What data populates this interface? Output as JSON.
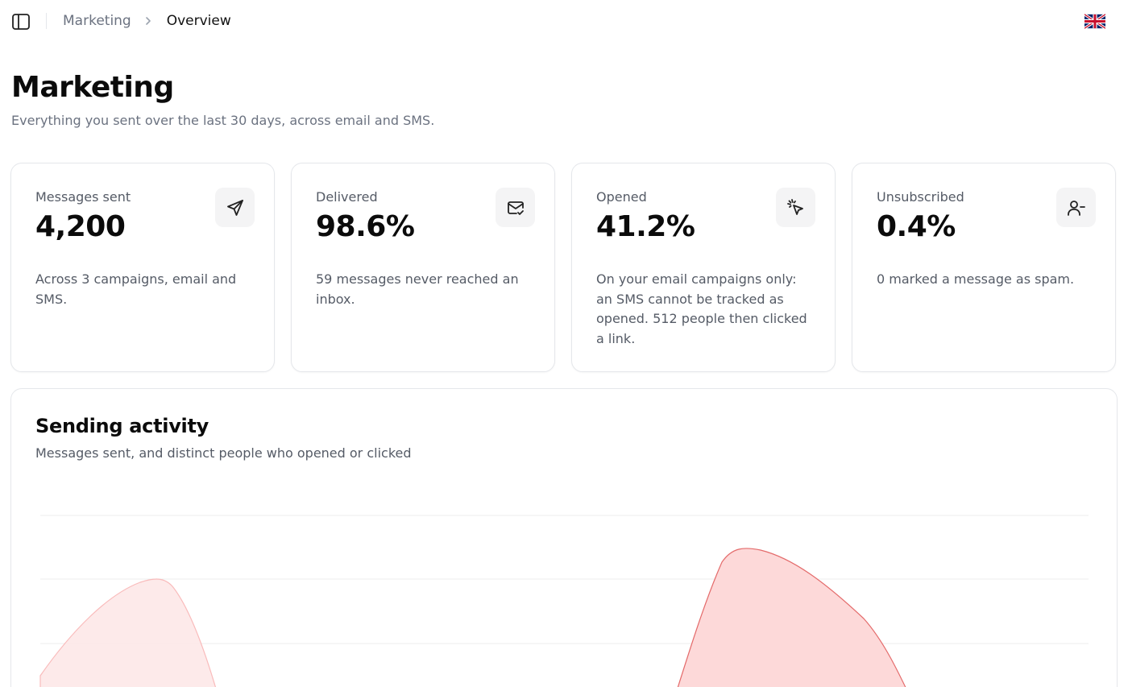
{
  "breadcrumb": {
    "parent": "Marketing",
    "current": "Overview"
  },
  "header": {
    "title": "Marketing",
    "subtitle": "Everything you sent over the last 30 days, across email and SMS."
  },
  "stats": [
    {
      "label": "Messages sent",
      "value": "4,200",
      "description": "Across 3 campaigns, email and SMS.",
      "icon": "send-icon"
    },
    {
      "label": "Delivered",
      "value": "98.6%",
      "description": "59 messages never reached an inbox.",
      "icon": "mail-check-icon"
    },
    {
      "label": "Opened",
      "value": "41.2%",
      "description": "On your email campaigns only: an SMS cannot be tracked as opened. 512 people then clicked a link.",
      "icon": "mouse-pointer-click-icon"
    },
    {
      "label": "Unsubscribed",
      "value": "0.4%",
      "description": "0 marked a message as spam.",
      "icon": "user-minus-icon"
    }
  ],
  "activity": {
    "title": "Sending activity",
    "subtitle": "Messages sent, and distinct people who opened or clicked"
  },
  "colors": {
    "area_light": "#fde8e8",
    "area_light_stroke": "#f9b4b4",
    "area_strong": "#fdd9d9",
    "area_strong_stroke": "#e46b6b",
    "grid": "#ececec"
  },
  "language_icon": "uk-flag-icon"
}
